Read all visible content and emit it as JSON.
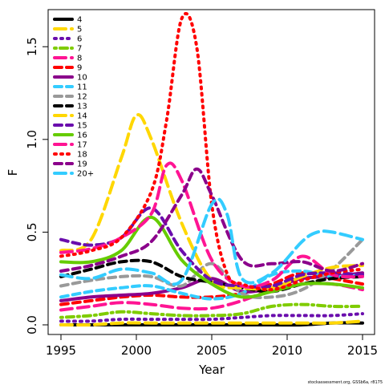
{
  "chart_data": {
    "type": "line",
    "xlabel": "Year",
    "ylabel": "F",
    "xlim": [
      1995,
      2015
    ],
    "ylim": [
      0,
      1.7
    ],
    "xticks": [
      1995,
      2000,
      2005,
      2010,
      2015
    ],
    "yticks": [
      0.0,
      0.5,
      1.0,
      1.5
    ],
    "xtick_labels": [
      "1995",
      "2000",
      "2005",
      "2010",
      "2015"
    ],
    "ytick_labels": [
      "0.0",
      "0.5",
      "1.0",
      "1.5"
    ],
    "legend_position": "top-left",
    "grid": false,
    "credit": "stockassessment.org, GSSb6a, r8175",
    "series": [
      {
        "name": "4",
        "color": "#000000",
        "dash": "solid",
        "x": [
          1995,
          1997,
          1999,
          2001,
          2003,
          2005,
          2007,
          2009,
          2011,
          2013,
          2015
        ],
        "values": [
          0.0,
          0.0,
          0.0,
          0.0,
          0.0,
          0.0,
          0.0,
          0.0,
          0.0,
          0.01,
          0.01
        ]
      },
      {
        "name": "5",
        "color": "#FFD700",
        "dash": "long",
        "x": [
          1995,
          1997,
          1999,
          2001,
          2003,
          2005,
          2007,
          2009,
          2011,
          2013,
          2015
        ],
        "values": [
          0.0,
          0.0,
          0.01,
          0.01,
          0.01,
          0.01,
          0.01,
          0.01,
          0.01,
          0.01,
          0.02
        ]
      },
      {
        "name": "6",
        "color": "#6A0DAD",
        "dash": "dot",
        "x": [
          1995,
          1997,
          1999,
          2001,
          2003,
          2005,
          2007,
          2009,
          2011,
          2013,
          2015
        ],
        "values": [
          0.02,
          0.02,
          0.03,
          0.03,
          0.03,
          0.03,
          0.04,
          0.05,
          0.05,
          0.05,
          0.06
        ]
      },
      {
        "name": "7",
        "color": "#7FCC00",
        "dash": "dotdash",
        "x": [
          1995,
          1997,
          1999,
          2001,
          2003,
          2005,
          2007,
          2009,
          2011,
          2013,
          2015
        ],
        "values": [
          0.04,
          0.05,
          0.07,
          0.06,
          0.05,
          0.05,
          0.06,
          0.1,
          0.11,
          0.1,
          0.1
        ]
      },
      {
        "name": "8",
        "color": "#FF1493",
        "dash": "long",
        "x": [
          1995,
          1997,
          1999,
          2001,
          2003,
          2005,
          2007,
          2009,
          2011,
          2013,
          2015
        ],
        "values": [
          0.08,
          0.1,
          0.12,
          0.11,
          0.09,
          0.09,
          0.13,
          0.19,
          0.22,
          0.22,
          0.19
        ]
      },
      {
        "name": "9",
        "color": "#FF0000",
        "dash": "dash",
        "x": [
          1995,
          1997,
          1999,
          2001,
          2003,
          2005,
          2007,
          2009,
          2011,
          2013,
          2015
        ],
        "values": [
          0.11,
          0.13,
          0.15,
          0.16,
          0.15,
          0.15,
          0.17,
          0.22,
          0.28,
          0.25,
          0.22
        ]
      },
      {
        "name": "10",
        "color": "#8B008B",
        "dash": "solid",
        "x": [
          1995,
          1997,
          1999,
          2001,
          2003,
          2005,
          2007,
          2009,
          2011,
          2013,
          2015
        ],
        "values": [
          0.13,
          0.15,
          0.16,
          0.17,
          0.2,
          0.25,
          0.18,
          0.2,
          0.25,
          0.26,
          0.28
        ]
      },
      {
        "name": "11",
        "color": "#33CCFF",
        "dash": "dash",
        "x": [
          1995,
          1997,
          1999,
          2001,
          2003,
          2005,
          2007,
          2009,
          2011,
          2013,
          2015
        ],
        "values": [
          0.15,
          0.18,
          0.2,
          0.21,
          0.17,
          0.14,
          0.17,
          0.27,
          0.29,
          0.26,
          0.27
        ]
      },
      {
        "name": "12",
        "color": "#999999",
        "dash": "dash",
        "x": [
          1995,
          1997,
          1999,
          2001,
          2003,
          2005,
          2007,
          2009,
          2011,
          2013,
          2015
        ],
        "values": [
          0.21,
          0.24,
          0.26,
          0.26,
          0.21,
          0.33,
          0.17,
          0.15,
          0.19,
          0.3,
          0.46
        ]
      },
      {
        "name": "13",
        "color": "#000000",
        "dash": "dash",
        "x": [
          1995,
          1997,
          1999,
          2001,
          2003,
          2005,
          2007,
          2009,
          2011,
          2013,
          2015
        ],
        "values": [
          0.26,
          0.3,
          0.34,
          0.34,
          0.26,
          0.23,
          0.2,
          0.18,
          0.22,
          0.25,
          0.26
        ]
      },
      {
        "name": "14",
        "color": "#FFD700",
        "dash": "long",
        "x": [
          1995,
          1997,
          1999,
          2000,
          2001,
          2003,
          2005,
          2007,
          2009,
          2011,
          2013,
          2015
        ],
        "values": [
          0.4,
          0.46,
          0.9,
          1.13,
          1.0,
          0.55,
          0.24,
          0.2,
          0.2,
          0.26,
          0.31,
          0.32
        ]
      },
      {
        "name": "15",
        "color": "#6A0DAD",
        "dash": "dash",
        "x": [
          1995,
          1997,
          1999,
          2001,
          2003,
          2005,
          2007,
          2009,
          2011,
          2013,
          2015
        ],
        "values": [
          0.46,
          0.43,
          0.47,
          0.63,
          0.4,
          0.24,
          0.21,
          0.21,
          0.27,
          0.28,
          0.27
        ]
      },
      {
        "name": "16",
        "color": "#66CC00",
        "dash": "solid",
        "x": [
          1995,
          1997,
          1999,
          2001,
          2003,
          2005,
          2007,
          2009,
          2011,
          2013,
          2015
        ],
        "values": [
          0.34,
          0.34,
          0.4,
          0.58,
          0.35,
          0.22,
          0.15,
          0.18,
          0.22,
          0.22,
          0.2
        ]
      },
      {
        "name": "17",
        "color": "#FF1493",
        "dash": "long",
        "x": [
          1995,
          1997,
          1999,
          2001,
          2002,
          2003,
          2005,
          2007,
          2009,
          2011,
          2013,
          2015
        ],
        "values": [
          0.39,
          0.41,
          0.47,
          0.6,
          0.86,
          0.78,
          0.35,
          0.21,
          0.24,
          0.37,
          0.27,
          0.26
        ]
      },
      {
        "name": "18",
        "color": "#FF0000",
        "dash": "dot",
        "x": [
          1995,
          1997,
          1999,
          2001,
          2002,
          2003,
          2004,
          2005,
          2006,
          2007,
          2009,
          2011,
          2013,
          2015
        ],
        "values": [
          0.37,
          0.4,
          0.47,
          0.72,
          1.1,
          1.65,
          1.5,
          0.65,
          0.28,
          0.22,
          0.19,
          0.24,
          0.28,
          0.3
        ]
      },
      {
        "name": "19",
        "color": "#8B008B",
        "dash": "dash",
        "x": [
          1995,
          1997,
          1999,
          2001,
          2003,
          2004,
          2005,
          2007,
          2009,
          2011,
          2013,
          2015
        ],
        "values": [
          0.29,
          0.32,
          0.37,
          0.45,
          0.7,
          0.84,
          0.7,
          0.35,
          0.33,
          0.34,
          0.29,
          0.33
        ]
      },
      {
        "name": "20+",
        "color": "#33CCFF",
        "dash": "long",
        "x": [
          1995,
          1997,
          1999,
          2001,
          2003,
          2005,
          2006,
          2007,
          2009,
          2011,
          2012,
          2013,
          2015
        ],
        "values": [
          0.27,
          0.25,
          0.3,
          0.28,
          0.24,
          0.65,
          0.6,
          0.25,
          0.28,
          0.45,
          0.5,
          0.5,
          0.46
        ]
      }
    ]
  }
}
